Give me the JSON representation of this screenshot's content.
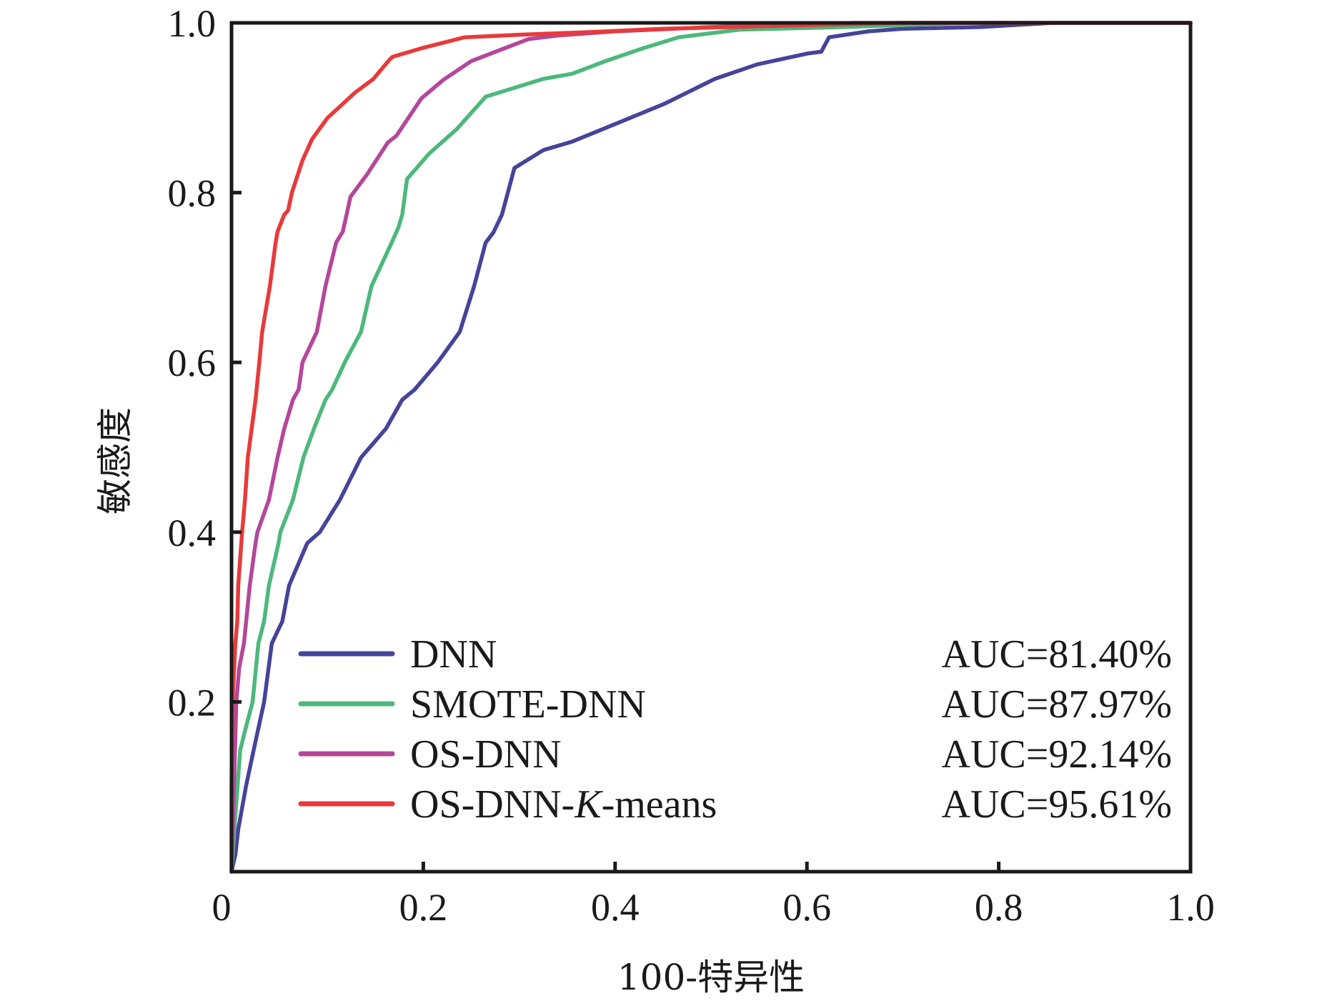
{
  "chart_data": {
    "type": "line",
    "title": "",
    "xlabel": "100-特异性",
    "ylabel": "敏感度",
    "xlim": [
      0,
      1.0
    ],
    "ylim": [
      0,
      1.0
    ],
    "x_ticks": [
      0,
      0.2,
      0.4,
      0.6,
      0.8,
      1.0
    ],
    "x_tick_labels": [
      "0",
      "0.2",
      "0.4",
      "0.6",
      "0.8",
      "1.0"
    ],
    "y_ticks": [
      0.2,
      0.4,
      0.6,
      0.8,
      1.0
    ],
    "y_tick_labels": [
      "0.2",
      "0.4",
      "0.6",
      "0.8",
      "1.0"
    ],
    "grid": false,
    "legend_position": "bottom-right",
    "series": [
      {
        "name": "DNN",
        "auc_label": "AUC=81.40%",
        "color": "#45449a",
        "x": [
          0,
          0.004,
          0.007,
          0.015,
          0.023,
          0.034,
          0.042,
          0.053,
          0.06,
          0.079,
          0.092,
          0.113,
          0.135,
          0.161,
          0.178,
          0.191,
          0.215,
          0.238,
          0.253,
          0.265,
          0.273,
          0.282,
          0.295,
          0.325,
          0.355,
          0.407,
          0.452,
          0.504,
          0.548,
          0.601,
          0.615,
          0.623,
          0.664,
          0.7,
          0.78,
          0.856,
          1.0
        ],
        "y": [
          0,
          0.02,
          0.05,
          0.1,
          0.143,
          0.2,
          0.269,
          0.295,
          0.337,
          0.387,
          0.4,
          0.438,
          0.488,
          0.522,
          0.556,
          0.568,
          0.6,
          0.636,
          0.69,
          0.741,
          0.753,
          0.774,
          0.829,
          0.85,
          0.86,
          0.884,
          0.905,
          0.934,
          0.951,
          0.964,
          0.966,
          0.983,
          0.99,
          0.993,
          0.995,
          1.0,
          1.0
        ]
      },
      {
        "name": "SMOTE-DNN",
        "auc_label": "AUC=87.97%",
        "color": "#4db87c",
        "x": [
          0,
          0.003,
          0.009,
          0.015,
          0.022,
          0.028,
          0.034,
          0.039,
          0.049,
          0.051,
          0.064,
          0.075,
          0.086,
          0.098,
          0.105,
          0.118,
          0.135,
          0.146,
          0.167,
          0.174,
          0.178,
          0.183,
          0.206,
          0.235,
          0.265,
          0.325,
          0.355,
          0.39,
          0.429,
          0.466,
          0.53,
          0.638,
          0.77,
          1.0
        ],
        "y": [
          0,
          0.05,
          0.143,
          0.17,
          0.2,
          0.269,
          0.295,
          0.337,
          0.387,
          0.4,
          0.438,
          0.488,
          0.522,
          0.556,
          0.568,
          0.6,
          0.636,
          0.69,
          0.741,
          0.759,
          0.774,
          0.816,
          0.846,
          0.875,
          0.913,
          0.934,
          0.94,
          0.955,
          0.97,
          0.983,
          0.992,
          0.995,
          1.0,
          1.0
        ]
      },
      {
        "name": "OS-DNN",
        "auc_label": "AUC=92.14%",
        "color": "#b4479b",
        "x": [
          0,
          0.002,
          0.005,
          0.008,
          0.013,
          0.019,
          0.025,
          0.027,
          0.039,
          0.048,
          0.055,
          0.064,
          0.07,
          0.074,
          0.089,
          0.098,
          0.109,
          0.116,
          0.12,
          0.124,
          0.141,
          0.163,
          0.172,
          0.198,
          0.221,
          0.25,
          0.28,
          0.31,
          0.34,
          0.4,
          0.5,
          0.65,
          1.0
        ],
        "y": [
          0,
          0.08,
          0.2,
          0.24,
          0.269,
          0.337,
          0.387,
          0.4,
          0.438,
          0.488,
          0.522,
          0.556,
          0.568,
          0.6,
          0.636,
          0.69,
          0.741,
          0.754,
          0.774,
          0.795,
          0.821,
          0.859,
          0.867,
          0.911,
          0.933,
          0.955,
          0.968,
          0.981,
          0.985,
          0.99,
          0.995,
          1.0,
          1.0
        ]
      },
      {
        "name": "OS-DNN-K-means",
        "auc_label": "AUC=95.61%",
        "color": "#e83a3a",
        "x": [
          0,
          0.0,
          0.001,
          0.004,
          0.006,
          0.007,
          0.011,
          0.014,
          0.017,
          0.021,
          0.025,
          0.029,
          0.032,
          0.04,
          0.046,
          0.048,
          0.055,
          0.059,
          0.063,
          0.074,
          0.084,
          0.1,
          0.129,
          0.148,
          0.165,
          0.168,
          0.198,
          0.243,
          0.3,
          0.37,
          0.45,
          0.55,
          0.7,
          1.0
        ],
        "y": [
          0,
          0.1,
          0.2,
          0.269,
          0.295,
          0.337,
          0.4,
          0.438,
          0.488,
          0.522,
          0.556,
          0.6,
          0.636,
          0.69,
          0.741,
          0.754,
          0.774,
          0.779,
          0.8,
          0.838,
          0.863,
          0.888,
          0.918,
          0.934,
          0.957,
          0.96,
          0.97,
          0.983,
          0.986,
          0.989,
          0.993,
          0.996,
          1.0,
          1.0
        ]
      }
    ]
  }
}
